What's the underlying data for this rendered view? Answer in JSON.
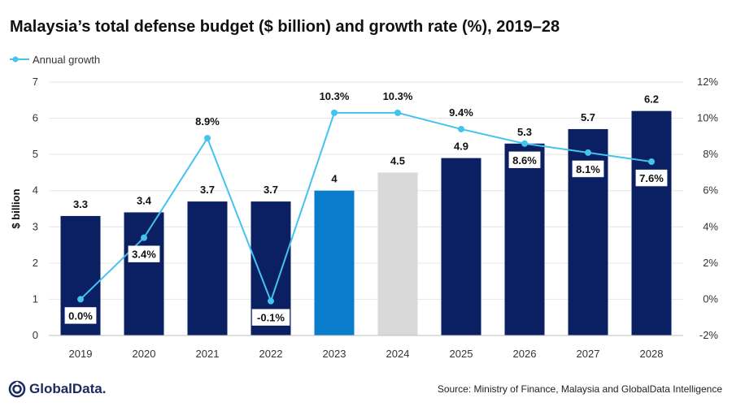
{
  "chart_data": {
    "type": "bar",
    "title": "Malaysia’s total defense budget ($ billion) and growth rate (%), 2019–28",
    "categories": [
      "2019",
      "2020",
      "2021",
      "2022",
      "2023",
      "2024",
      "2025",
      "2026",
      "2027",
      "2028"
    ],
    "series": [
      {
        "name": "Defense budget",
        "type": "bar",
        "axis": "left",
        "values": [
          3.3,
          3.4,
          3.7,
          3.7,
          4,
          4.5,
          4.9,
          5.3,
          5.7,
          6.2
        ],
        "labels": [
          "3.3",
          "3.4",
          "3.7",
          "3.7",
          "4",
          "4.5",
          "4.9",
          "5.3",
          "5.7",
          "6.2"
        ]
      },
      {
        "name": "Annual growth",
        "type": "line",
        "axis": "right",
        "values": [
          0.0,
          3.4,
          8.9,
          -0.1,
          10.3,
          10.3,
          9.4,
          8.6,
          8.1,
          7.6
        ],
        "labels": [
          "0.0%",
          "3.4%",
          "8.9%",
          "-0.1%",
          "10.3%",
          "10.3%",
          "9.4%",
          "8.6%",
          "8.1%",
          "7.6%"
        ]
      }
    ],
    "bar_colors": [
      "#0b1f63",
      "#0b1f63",
      "#0b1f63",
      "#0b1f63",
      "#0a7ccc",
      "#d9d9d9",
      "#0b1f63",
      "#0b1f63",
      "#0b1f63",
      "#0b1f63"
    ],
    "line_color": "#44c3ef",
    "ylabel": "$ billion",
    "ylim": [
      0,
      7
    ],
    "y_ticks": [
      "0",
      "1",
      "2",
      "3",
      "4",
      "5",
      "6",
      "7"
    ],
    "y2lim": [
      -2,
      12
    ],
    "y2_ticks": [
      "-2%",
      "0%",
      "2%",
      "4%",
      "6%",
      "8%",
      "10%",
      "12%"
    ],
    "legend": {
      "label": "Annual growth",
      "position": "top-left"
    }
  },
  "footer": {
    "logo": "GlobalData.",
    "source": "Source: Ministry of Finance, Malaysia and GlobalData Intelligence"
  }
}
